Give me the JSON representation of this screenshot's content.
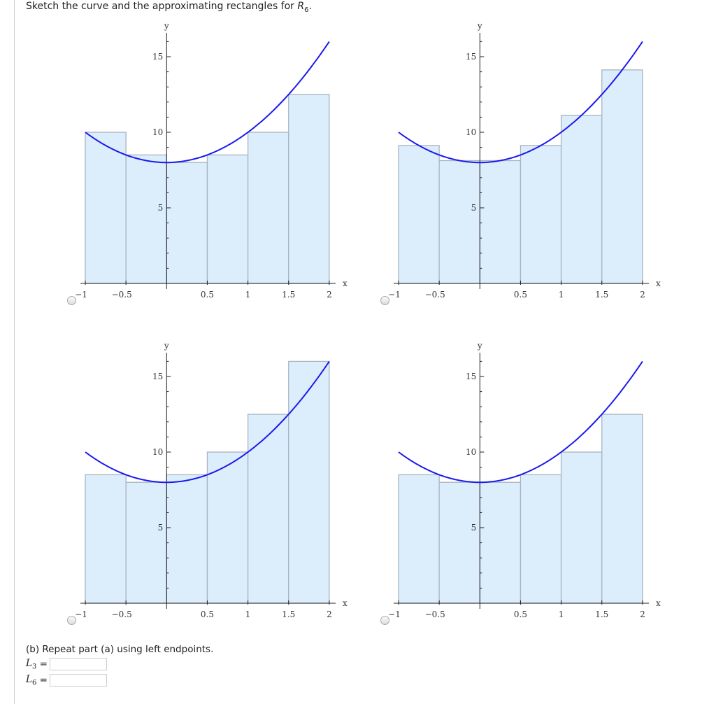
{
  "question": {
    "text": "Sketch the curve and the approximating rectangles for ",
    "symbol": "R",
    "subscript": "6",
    "end": "."
  },
  "colors": {
    "curve": "#1a1aee",
    "rect_fill": "#dcedfc",
    "rect_stroke": "#a8b4c0"
  },
  "chart_data": [
    {
      "type": "bar",
      "option": 1,
      "function": "8 + 2x^2",
      "xlabel": "x",
      "ylabel": "y",
      "xlim": [
        -1,
        2
      ],
      "ylim": [
        0,
        16
      ],
      "xticks": [
        "-1",
        "-0.5",
        "0.5",
        "1",
        "1.5",
        "2"
      ],
      "yticks": [
        "5",
        "10",
        "15"
      ],
      "bar_edges": [
        -1,
        -0.5,
        0,
        0.5,
        1,
        1.5,
        2
      ],
      "values": [
        10,
        8.5,
        8,
        8.5,
        10,
        12.5
      ]
    },
    {
      "type": "bar",
      "option": 2,
      "function": "8 + 2x^2",
      "xlabel": "x",
      "ylabel": "y",
      "xlim": [
        -1,
        2
      ],
      "ylim": [
        0,
        16
      ],
      "xticks": [
        "-1",
        "-0.5",
        "0.5",
        "1",
        "1.5",
        "2"
      ],
      "yticks": [
        "5",
        "10",
        "15"
      ],
      "bar_edges": [
        -1,
        -0.5,
        0,
        0.5,
        1,
        1.5,
        2
      ],
      "values": [
        9.125,
        8.125,
        8.125,
        9.125,
        11.125,
        14.125
      ]
    },
    {
      "type": "bar",
      "option": 3,
      "function": "8 + 2x^2",
      "xlabel": "x",
      "ylabel": "y",
      "xlim": [
        -1,
        2
      ],
      "ylim": [
        0,
        16
      ],
      "xticks": [
        "-1",
        "-0.5",
        "0.5",
        "1",
        "1.5",
        "2"
      ],
      "yticks": [
        "5",
        "10",
        "15"
      ],
      "bar_edges": [
        -1,
        -0.5,
        0,
        0.5,
        1,
        1.5,
        2
      ],
      "values": [
        8.5,
        8,
        8.5,
        10,
        12.5,
        16
      ]
    },
    {
      "type": "bar",
      "option": 4,
      "function": "8 + 2x^2",
      "xlabel": "x",
      "ylabel": "y",
      "xlim": [
        -1,
        2
      ],
      "ylim": [
        0,
        16
      ],
      "xticks": [
        "-1",
        "-0.5",
        "0.5",
        "1",
        "1.5",
        "2"
      ],
      "yticks": [
        "5",
        "10",
        "15"
      ],
      "bar_edges": [
        -1,
        -0.5,
        0,
        0.5,
        1,
        1.5,
        2
      ],
      "values": [
        8.5,
        8,
        8,
        8.5,
        10,
        12.5
      ]
    }
  ],
  "part_b": {
    "text": "(b) Repeat part (a) using left endpoints.",
    "fields": [
      {
        "symbol": "L",
        "subscript": "3",
        "eq": "=",
        "value": ""
      },
      {
        "symbol": "L",
        "subscript": "6",
        "eq": "=",
        "value": ""
      }
    ]
  }
}
